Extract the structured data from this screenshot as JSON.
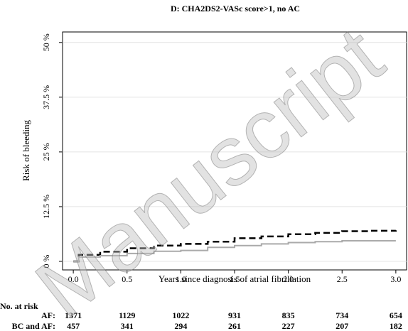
{
  "chart_data": {
    "type": "line",
    "title": "D: CHA2DS2-VASc score>1, no AC",
    "xlabel": "Years since diagnosis of atrial fibrillation",
    "ylabel": "Risk of bleeding",
    "watermark": "Manuscript",
    "step": true,
    "x": [
      0,
      0.05,
      0.25,
      0.5,
      0.75,
      1.0,
      1.25,
      1.5,
      1.75,
      2.0,
      2.25,
      2.5,
      2.75,
      3.0
    ],
    "series": [
      {
        "color": "#000000",
        "dashed": true,
        "values": [
          0,
          1.5,
          2.2,
          3.0,
          3.6,
          4.0,
          4.5,
          5.3,
          5.7,
          6.2,
          6.5,
          6.9,
          7.0,
          7.1
        ]
      },
      {
        "color": "#aaaaaa",
        "dashed": false,
        "values": [
          0,
          1.0,
          1.3,
          1.8,
          2.3,
          2.5,
          3.2,
          3.6,
          4.0,
          4.3,
          4.5,
          4.7,
          4.7,
          4.7
        ]
      }
    ],
    "xlim": [
      -0.1,
      3.1
    ],
    "ylim": [
      -1.95,
      52.4
    ],
    "xticks": [
      {
        "value": 0,
        "label": "0.0"
      },
      {
        "value": 0.5,
        "label": "0.5"
      },
      {
        "value": 1,
        "label": "1.0"
      },
      {
        "value": 1.5,
        "label": "1.5"
      },
      {
        "value": 2,
        "label": "2.0"
      },
      {
        "value": 2.5,
        "label": "2.5"
      },
      {
        "value": 3,
        "label": "3.0"
      }
    ],
    "yticks": [
      {
        "value": 0,
        "label": "0 %"
      },
      {
        "value": 12.5,
        "label": "12.5 %"
      },
      {
        "value": 25,
        "label": "25 %"
      },
      {
        "value": 37.5,
        "label": "37.5 %"
      },
      {
        "value": 50,
        "label": "50 %"
      }
    ],
    "grid": true,
    "risk_table": {
      "title": "No. at risk",
      "rows": [
        {
          "label": "AF:",
          "color": "#000000",
          "values": [
            1371,
            1129,
            1022,
            931,
            835,
            734,
            654
          ]
        },
        {
          "label": "BC and AF:",
          "color": "#aaaaaa",
          "values": [
            457,
            341,
            294,
            261,
            227,
            207,
            182
          ]
        }
      ]
    }
  }
}
